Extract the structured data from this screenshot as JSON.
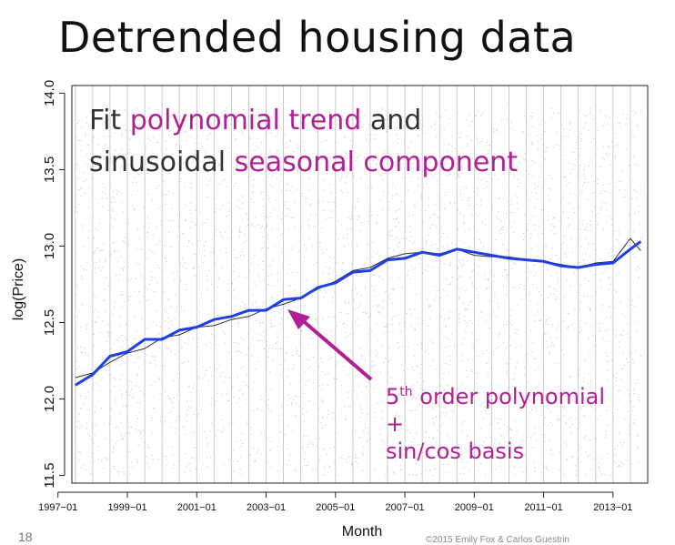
{
  "slide": {
    "title": "Detrended housing data",
    "number": "18",
    "copyright": "©2015 Emily Fox & Carlos Guestrin"
  },
  "callouts": {
    "fit_line1_a": "Fit ",
    "fit_line1_b": "polynomial trend",
    "fit_line1_c": " and",
    "fit_line2_a": "sinusoidal ",
    "fit_line2_b": "seasonal component",
    "basis_line1_a": "5",
    "basis_line1_sup": "th",
    "basis_line1_b": " order polynomial",
    "basis_line2": "+",
    "basis_line3": "sin/cos basis"
  },
  "colors": {
    "fit_line": "#1f3fe6",
    "observed_line": "#333333",
    "highlight": "#b21f95",
    "scatter": "#cfcfcf"
  },
  "chart_data": {
    "type": "line",
    "xlabel": "Month",
    "ylabel": "log(Price)",
    "xlim": [
      1997.4,
      2014.0
    ],
    "ylim": [
      11.45,
      14.05
    ],
    "x_ticks": [
      1997,
      1999,
      2001,
      2003,
      2005,
      2007,
      2009,
      2011,
      2013
    ],
    "x_tick_labels": [
      "1997−01",
      "1999−01",
      "2001−01",
      "2003−01",
      "2005−01",
      "2007−01",
      "2009−01",
      "2011−01",
      "2013−01"
    ],
    "y_ticks": [
      11.5,
      12.0,
      12.5,
      13.0,
      13.5,
      14.0
    ],
    "y_tick_labels": [
      "11.5",
      "12.0",
      "12.5",
      "13.0",
      "13.5",
      "14.0"
    ],
    "grid": "vertical lines every 6 months",
    "background_scatter": "dense individual sale points spanning roughly 11.5 to 13.9",
    "series": [
      {
        "kind": "observed",
        "x": [
          1997.5,
          1998.0,
          1998.5,
          1999.0,
          1999.5,
          2000.0,
          2000.5,
          2001.0,
          2001.5,
          2002.0,
          2002.5,
          2003.0,
          2003.5,
          2004.0,
          2004.5,
          2005.0,
          2005.5,
          2006.0,
          2006.5,
          2007.0,
          2007.5,
          2008.0,
          2008.5,
          2009.0,
          2009.5,
          2010.0,
          2010.5,
          2011.0,
          2011.5,
          2012.0,
          2012.5,
          2013.0,
          2013.5,
          2013.8
        ],
        "y": [
          12.14,
          12.17,
          12.24,
          12.3,
          12.33,
          12.4,
          12.42,
          12.47,
          12.48,
          12.52,
          12.54,
          12.59,
          12.62,
          12.66,
          12.72,
          12.77,
          12.84,
          12.86,
          12.92,
          12.95,
          12.96,
          12.95,
          12.98,
          12.94,
          12.93,
          12.93,
          12.91,
          12.9,
          12.88,
          12.86,
          12.89,
          12.9,
          13.05,
          12.97
        ]
      },
      {
        "kind": "fit",
        "x": [
          1997.5,
          1998.0,
          1998.5,
          1999.0,
          1999.5,
          2000.0,
          2000.5,
          2001.0,
          2001.5,
          2002.0,
          2002.5,
          2003.0,
          2003.5,
          2004.0,
          2004.5,
          2005.0,
          2005.5,
          2006.0,
          2006.5,
          2007.0,
          2007.5,
          2008.0,
          2008.5,
          2009.0,
          2009.5,
          2010.0,
          2010.5,
          2011.0,
          2011.5,
          2012.0,
          2012.5,
          2013.0,
          2013.5,
          2013.8
        ],
        "y": [
          12.09,
          12.16,
          12.28,
          12.31,
          12.39,
          12.39,
          12.45,
          12.47,
          12.52,
          12.54,
          12.58,
          12.58,
          12.65,
          12.66,
          12.73,
          12.76,
          12.83,
          12.84,
          12.91,
          12.92,
          12.96,
          12.94,
          12.98,
          12.96,
          12.94,
          12.92,
          12.91,
          12.9,
          12.87,
          12.86,
          12.88,
          12.89,
          12.98,
          13.03
        ]
      }
    ]
  }
}
